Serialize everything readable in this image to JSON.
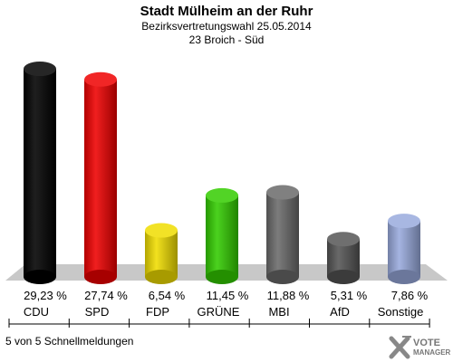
{
  "header": {
    "title": "Stadt Mülheim an der Ruhr",
    "subtitle1": "Bezirksvertretungswahl 25.05.2014",
    "subtitle2": "23 Broich - Süd"
  },
  "footer": {
    "text": "5 von 5 Schnellmeldungen"
  },
  "logo": {
    "line1": "VOTE",
    "line2": "MANAGER"
  },
  "chart_data": {
    "type": "bar",
    "title": "Stadt Mülheim an der Ruhr",
    "categories": [
      "CDU",
      "SPD",
      "FDP",
      "GRÜNE",
      "MBI",
      "AfD",
      "Sonstige"
    ],
    "values": [
      29.23,
      27.74,
      6.54,
      11.45,
      11.88,
      5.31,
      7.86
    ],
    "value_labels": [
      "29,23 %",
      "27,74 %",
      "6,54 %",
      "11,45 %",
      "11,88 %",
      "5,31 %",
      "7,86 %"
    ],
    "colors": [
      "#000000",
      "#ee0000",
      "#f0dd00",
      "#33cc00",
      "#6a6a6a",
      "#555555",
      "#99aadd"
    ],
    "ylim": [
      0,
      30
    ],
    "grid": false,
    "legend": "none"
  }
}
